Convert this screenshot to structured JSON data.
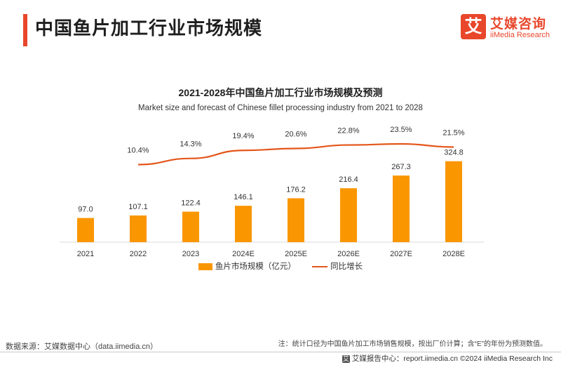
{
  "header": {
    "title": "中国鱼片加工行业市场规模",
    "logo_mark": "艾",
    "logo_cn": "艾媒咨询",
    "logo_en": "iiMedia Research"
  },
  "colors": {
    "accent": "#e8472b",
    "bar": "#fa9600",
    "line": "#e4561b"
  },
  "chart_data": {
    "type": "bar",
    "title": "2021-2028年中国鱼片加工行业市场规模及预测",
    "subtitle": "Market size and forecast of Chinese fillet processing industry from 2021 to 2028",
    "categories": [
      "2021",
      "2022",
      "2023",
      "2024E",
      "2025E",
      "2026E",
      "2027E",
      "2028E"
    ],
    "series": [
      {
        "name": "鱼片市场规模（亿元）",
        "type": "bar",
        "values": [
          97.0,
          107.1,
          122.4,
          146.1,
          176.2,
          216.4,
          267.3,
          324.8
        ],
        "labels": [
          "97.0",
          "107.1",
          "122.4",
          "146.1",
          "176.2",
          "216.4",
          "267.3",
          "324.8"
        ]
      },
      {
        "name": "同比增长",
        "type": "line",
        "values": [
          null,
          10.4,
          14.3,
          19.4,
          20.6,
          22.8,
          23.5,
          21.5
        ],
        "labels": [
          "",
          "10.4%",
          "14.3%",
          "19.4%",
          "20.6%",
          "22.8%",
          "23.5%",
          "21.5%"
        ]
      }
    ],
    "xlabel": "",
    "ylabel": "",
    "legend_position": "bottom",
    "grid": false
  },
  "notes": {
    "right": "注：统计口径为中国鱼片加工市场销售规模，按出厂价计算；含“E”的年份为预测数值。",
    "source": "数据来源：艾媒数据中心（data.iimedia.cn）"
  },
  "footer": {
    "icon": "艾",
    "text": "艾媒报告中心：report.iimedia.cn    ©2024  iiMedia Research  Inc"
  }
}
